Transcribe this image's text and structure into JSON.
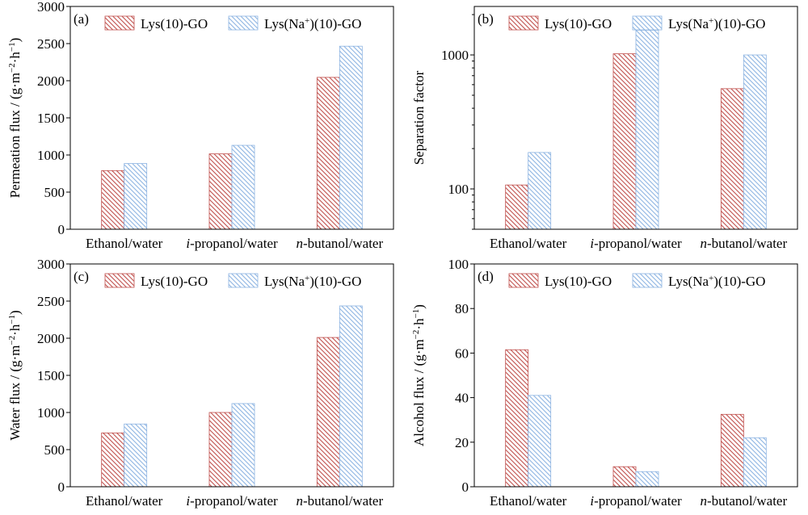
{
  "colors": {
    "series1": "#c0504d",
    "series2": "#8db4e2"
  },
  "chart_data": [
    {
      "type": "bar",
      "tag": "(a)",
      "ylabel": [
        "Permeation flux / (g·m",
        "−2",
        "·h",
        "−1",
        ")"
      ],
      "categories": [
        "Ethanol/water",
        "i-propanol/water",
        "n-butanol/water"
      ],
      "series": [
        {
          "name": [
            "Lys(10)-GO"
          ],
          "values": [
            790,
            1015,
            2045
          ]
        },
        {
          "name": [
            "Lys(Na",
            "+",
            ")(10)-GO"
          ],
          "values": [
            885,
            1130,
            2465
          ]
        }
      ],
      "ylim": [
        0,
        3000
      ],
      "yticks": [
        0,
        500,
        1000,
        1500,
        2000,
        2500,
        3000
      ],
      "scale": "linear",
      "legend": "top-center"
    },
    {
      "type": "bar",
      "tag": "(b)",
      "ylabel": [
        "Separation factor"
      ],
      "categories": [
        "Ethanol/water",
        "i-propanol/water",
        "n-butanol/water"
      ],
      "series": [
        {
          "name": [
            "Lys(10)-GO"
          ],
          "values": [
            107,
            1020,
            560
          ]
        },
        {
          "name": [
            "Lys(Na",
            "+",
            ")(10)-GO"
          ],
          "values": [
            187,
            1530,
            1000
          ]
        }
      ],
      "ylim": [
        50,
        2300
      ],
      "yticks": [
        100,
        1000
      ],
      "scale": "log",
      "legend": "top-center"
    },
    {
      "type": "bar",
      "tag": "(c)",
      "ylabel": [
        "Water flux / (g·m",
        "−2",
        "·h",
        "−1",
        ")"
      ],
      "categories": [
        "Ethanol/water",
        "i-propanol/water",
        "n-butanol/water"
      ],
      "series": [
        {
          "name": [
            "Lys(10)-GO"
          ],
          "values": [
            725,
            1000,
            2010
          ]
        },
        {
          "name": [
            "Lys(Na",
            "+",
            ")(10)-GO"
          ],
          "values": [
            845,
            1120,
            2435
          ]
        }
      ],
      "ylim": [
        0,
        3000
      ],
      "yticks": [
        0,
        500,
        1000,
        1500,
        2000,
        2500,
        3000
      ],
      "scale": "linear",
      "legend": "top-center"
    },
    {
      "type": "bar",
      "tag": "(d)",
      "ylabel": [
        "Alcohol flux / (g·m",
        "−2",
        "·h",
        "−1",
        ")"
      ],
      "categories": [
        "Ethanol/water",
        "i-propanol/water",
        "n-butanol/water"
      ],
      "series": [
        {
          "name": [
            "Lys(10)-GO"
          ],
          "values": [
            61.5,
            9,
            32.5
          ]
        },
        {
          "name": [
            "Lys(Na",
            "+",
            ")(10)-GO"
          ],
          "values": [
            41,
            6.8,
            22
          ]
        }
      ],
      "ylim": [
        0,
        100
      ],
      "yticks": [
        0,
        20,
        40,
        60,
        80,
        100
      ],
      "scale": "linear",
      "legend": "top-center"
    }
  ]
}
